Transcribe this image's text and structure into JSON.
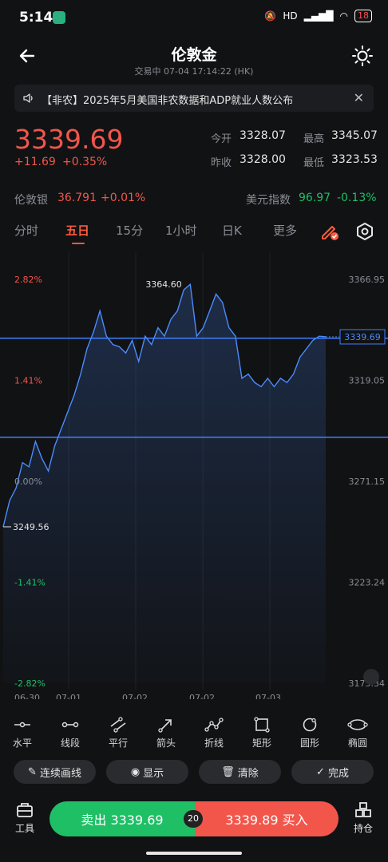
{
  "status": {
    "time": "5:14",
    "battery": "18",
    "network": "HD"
  },
  "header": {
    "title": "伦敦金",
    "subtitle": "交易中  07-04 17:14:22 (HK)"
  },
  "notice": {
    "text": "【非农】2025年5月美国非农数据和ADP就业人数公布"
  },
  "quote": {
    "price": "3339.69",
    "change": "+11.69",
    "change_pct": "+0.35%",
    "open_label": "今开",
    "open": "3328.07",
    "high_label": "最高",
    "high": "3345.07",
    "prev_label": "昨收",
    "prev": "3328.00",
    "low_label": "最低",
    "low": "3323.53"
  },
  "related": {
    "silver_label": "伦敦银",
    "silver_value": "36.791",
    "silver_change": "+0.01%",
    "dxy_label": "美元指数",
    "dxy_value": "96.97",
    "dxy_change": "-0.13%"
  },
  "tabs": [
    "分时",
    "五日",
    "15分",
    "1小时",
    "日K",
    "更多"
  ],
  "active_tab": "五日",
  "chart_data": {
    "type": "line",
    "x_ticks": [
      "06-30",
      "07-01",
      "07-02",
      "07-02",
      "07-03"
    ],
    "y_ticks_right": [
      "3366.95",
      "3319.05",
      "3271.15",
      "3223.24",
      "3175.34"
    ],
    "y_ticks_left": [
      "2.82%",
      "1.41%",
      "0.00%",
      "-1.41%",
      "-2.82%"
    ],
    "ylim": [
      3175.34,
      3366.95
    ],
    "max_label": "3364.60",
    "min_label": "3249.56",
    "current_label": "3339.69",
    "hlines": [
      3339.0,
      3292.0
    ],
    "x": [
      0,
      2,
      4,
      6,
      8,
      10,
      12,
      14,
      16,
      18,
      20,
      22,
      24,
      26,
      28,
      30,
      32,
      34,
      36,
      38,
      40,
      42,
      44,
      46,
      48,
      50,
      52,
      54,
      56,
      58,
      60,
      62,
      64,
      66,
      68,
      70,
      72,
      74,
      76,
      78,
      80,
      82,
      84,
      86,
      88,
      90,
      92,
      94,
      96,
      98,
      100
    ],
    "values": [
      3249.56,
      3262,
      3268,
      3280,
      3278,
      3290,
      3282,
      3276,
      3288,
      3296,
      3304,
      3312,
      3322,
      3334,
      3342,
      3352,
      3340,
      3336,
      3335,
      3332,
      3338,
      3328,
      3340,
      3336,
      3344,
      3340,
      3348,
      3352,
      3362,
      3364.6,
      3340,
      3344,
      3352,
      3360,
      3356,
      3344,
      3340,
      3320,
      3322,
      3318,
      3316,
      3320,
      3316,
      3320,
      3318,
      3322,
      3330,
      3334,
      3338,
      3340,
      3339.69
    ]
  },
  "tools": [
    "水平",
    "线段",
    "平行",
    "箭头",
    "折线",
    "矩形",
    "圆形",
    "椭圆"
  ],
  "actions": [
    "连续画线",
    "显示",
    "清除",
    "完成"
  ],
  "bottom": {
    "tools_label": "工具",
    "sell_label": "卖出 3339.69",
    "spread": "20",
    "buy_label": "3339.89 买入",
    "position_label": "持仓"
  },
  "colors": {
    "up": "#f2564b",
    "down": "#1fbf66",
    "line": "#4a8cff",
    "accent": "#ff5a3c"
  }
}
